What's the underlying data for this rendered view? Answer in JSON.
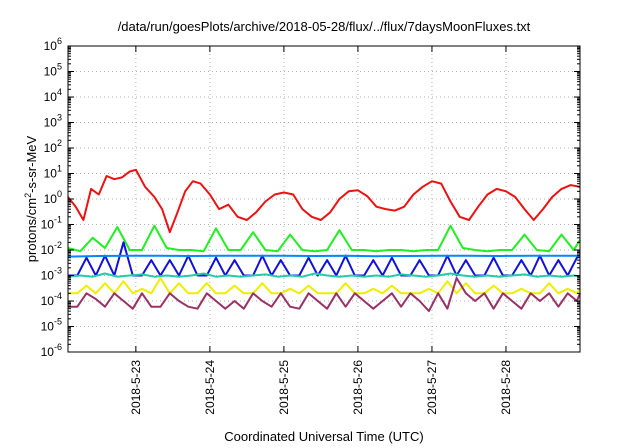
{
  "chart_data": {
    "type": "line",
    "title": "/data/run/goesPlots/archive/2018-05-28/flux/../flux/7daysMoonFluxes.txt",
    "xlabel": "Coordinated Universal Time (UTC)",
    "ylabel_base": "protons/cm",
    "ylabel_sup": "2",
    "ylabel_rest": "-s-sr-MeV",
    "yscale": "log",
    "ylim": [
      1e-06,
      1000000.0
    ],
    "xlim": [
      "2018-05-22 02:00",
      "2018-05-29 00:00"
    ],
    "grid": true,
    "legend": "none",
    "yticks": [
      {
        "base": "10",
        "exp": "-6",
        "value": 1e-06
      },
      {
        "base": "10",
        "exp": "-5",
        "value": 1e-05
      },
      {
        "base": "10",
        "exp": "-4",
        "value": 0.0001
      },
      {
        "base": "10",
        "exp": "-3",
        "value": 0.001
      },
      {
        "base": "10",
        "exp": "-2",
        "value": 0.01
      },
      {
        "base": "10",
        "exp": "-1",
        "value": 0.1
      },
      {
        "base": "10",
        "exp": "0",
        "value": 1
      },
      {
        "base": "10",
        "exp": "1",
        "value": 10
      },
      {
        "base": "10",
        "exp": "2",
        "value": 100
      },
      {
        "base": "10",
        "exp": "3",
        "value": 1000
      },
      {
        "base": "10",
        "exp": "4",
        "value": 10000
      },
      {
        "base": "10",
        "exp": "5",
        "value": 100000
      },
      {
        "base": "10",
        "exp": "6",
        "value": 1000000
      }
    ],
    "xticks": [
      {
        "label": "2018-5-23",
        "value": "2018-05-23 00:00"
      },
      {
        "label": "2018-5-24",
        "value": "2018-05-24 00:00"
      },
      {
        "label": "2018-5-25",
        "value": "2018-05-25 00:00"
      },
      {
        "label": "2018-5-26",
        "value": "2018-05-26 00:00"
      },
      {
        "label": "2018-5-27",
        "value": "2018-05-27 00:00"
      },
      {
        "label": "2018-5-28",
        "value": "2018-05-28 00:00"
      }
    ],
    "series": [
      {
        "color": "#ee1111",
        "x": [
          "2018-05-22 02:00",
          "2018-05-22 04:30",
          "2018-05-22 07:00",
          "2018-05-22 09:30",
          "2018-05-22 12:00",
          "2018-05-22 14:30",
          "2018-05-22 17:00",
          "2018-05-22 19:30",
          "2018-05-22 22:00",
          "2018-05-23 00:00",
          "2018-05-23 03:00",
          "2018-05-23 06:00",
          "2018-05-23 08:30",
          "2018-05-23 11:00",
          "2018-05-23 13:30",
          "2018-05-23 16:00",
          "2018-05-23 18:30",
          "2018-05-23 21:00",
          "2018-05-24 00:00",
          "2018-05-24 03:00",
          "2018-05-24 06:00",
          "2018-05-24 09:00",
          "2018-05-24 12:00",
          "2018-05-24 15:00",
          "2018-05-24 18:00",
          "2018-05-24 21:00",
          "2018-05-25 00:00",
          "2018-05-25 03:00",
          "2018-05-25 06:00",
          "2018-05-25 09:00",
          "2018-05-25 12:00",
          "2018-05-25 15:00",
          "2018-05-25 18:00",
          "2018-05-25 21:00",
          "2018-05-26 00:00",
          "2018-05-26 03:00",
          "2018-05-26 06:00",
          "2018-05-26 09:00",
          "2018-05-26 12:00",
          "2018-05-26 15:00",
          "2018-05-26 18:00",
          "2018-05-26 21:00",
          "2018-05-27 00:00",
          "2018-05-27 03:00",
          "2018-05-27 06:00",
          "2018-05-27 09:00",
          "2018-05-27 12:00",
          "2018-05-27 15:00",
          "2018-05-27 18:00",
          "2018-05-27 21:00",
          "2018-05-28 00:00",
          "2018-05-28 03:00",
          "2018-05-28 06:00",
          "2018-05-28 09:00",
          "2018-05-28 12:00",
          "2018-05-28 15:00",
          "2018-05-28 18:00",
          "2018-05-28 21:00",
          "2018-05-29 00:00"
        ],
        "values": [
          1.2,
          0.5,
          0.15,
          2.5,
          1.5,
          8,
          6,
          7,
          12,
          14,
          3,
          1.2,
          0.4,
          0.05,
          0.3,
          2,
          5,
          4,
          1.5,
          0.4,
          0.6,
          0.2,
          0.15,
          0.3,
          0.8,
          1.5,
          1.8,
          1.5,
          0.4,
          0.2,
          0.15,
          0.3,
          1,
          2,
          2.2,
          1.3,
          0.5,
          0.4,
          0.35,
          0.5,
          1.5,
          3,
          5,
          4,
          0.8,
          0.2,
          0.15,
          0.5,
          1.5,
          2.5,
          2,
          1.2,
          0.4,
          0.15,
          0.4,
          1.2,
          2.5,
          3.5,
          3
        ]
      },
      {
        "color": "#22ee22",
        "x": [
          "2018-05-22 02:00",
          "2018-05-22 06:00",
          "2018-05-22 10:00",
          "2018-05-22 14:00",
          "2018-05-22 18:00",
          "2018-05-22 22:00",
          "2018-05-23 02:00",
          "2018-05-23 06:00",
          "2018-05-23 10:00",
          "2018-05-23 14:00",
          "2018-05-23 18:00",
          "2018-05-23 22:00",
          "2018-05-24 02:00",
          "2018-05-24 06:00",
          "2018-05-24 10:00",
          "2018-05-24 14:00",
          "2018-05-24 18:00",
          "2018-05-24 22:00",
          "2018-05-25 02:00",
          "2018-05-25 06:00",
          "2018-05-25 10:00",
          "2018-05-25 14:00",
          "2018-05-25 18:00",
          "2018-05-25 22:00",
          "2018-05-26 02:00",
          "2018-05-26 06:00",
          "2018-05-26 10:00",
          "2018-05-26 14:00",
          "2018-05-26 18:00",
          "2018-05-26 22:00",
          "2018-05-27 02:00",
          "2018-05-27 06:00",
          "2018-05-27 10:00",
          "2018-05-27 14:00",
          "2018-05-27 18:00",
          "2018-05-27 22:00",
          "2018-05-28 02:00",
          "2018-05-28 06:00",
          "2018-05-28 10:00",
          "2018-05-28 14:00",
          "2018-05-28 18:00",
          "2018-05-28 22:00",
          "2018-05-29 00:00"
        ],
        "values": [
          0.012,
          0.009,
          0.03,
          0.012,
          0.08,
          0.01,
          0.01,
          0.09,
          0.012,
          0.01,
          0.01,
          0.009,
          0.07,
          0.01,
          0.01,
          0.05,
          0.01,
          0.009,
          0.04,
          0.01,
          0.009,
          0.01,
          0.06,
          0.01,
          0.01,
          0.009,
          0.01,
          0.01,
          0.009,
          0.01,
          0.01,
          0.09,
          0.012,
          0.01,
          0.009,
          0.01,
          0.01,
          0.04,
          0.01,
          0.009,
          0.04,
          0.01,
          0.025
        ]
      },
      {
        "color": "#1111dd",
        "x": [
          "2018-05-22 02:00",
          "2018-05-22 05:00",
          "2018-05-22 08:00",
          "2018-05-22 11:00",
          "2018-05-22 14:00",
          "2018-05-22 17:00",
          "2018-05-22 20:00",
          "2018-05-22 23:00",
          "2018-05-23 02:00",
          "2018-05-23 05:00",
          "2018-05-23 08:00",
          "2018-05-23 11:00",
          "2018-05-23 14:00",
          "2018-05-23 17:00",
          "2018-05-23 20:00",
          "2018-05-23 23:00",
          "2018-05-24 02:00",
          "2018-05-24 05:00",
          "2018-05-24 08:00",
          "2018-05-24 11:00",
          "2018-05-24 14:00",
          "2018-05-24 17:00",
          "2018-05-24 20:00",
          "2018-05-24 23:00",
          "2018-05-25 02:00",
          "2018-05-25 05:00",
          "2018-05-25 08:00",
          "2018-05-25 11:00",
          "2018-05-25 14:00",
          "2018-05-25 17:00",
          "2018-05-25 20:00",
          "2018-05-25 23:00",
          "2018-05-26 02:00",
          "2018-05-26 05:00",
          "2018-05-26 08:00",
          "2018-05-26 11:00",
          "2018-05-26 14:00",
          "2018-05-26 17:00",
          "2018-05-26 20:00",
          "2018-05-26 23:00",
          "2018-05-27 02:00",
          "2018-05-27 05:00",
          "2018-05-27 08:00",
          "2018-05-27 11:00",
          "2018-05-27 14:00",
          "2018-05-27 17:00",
          "2018-05-27 20:00",
          "2018-05-27 23:00",
          "2018-05-28 02:00",
          "2018-05-28 05:00",
          "2018-05-28 08:00",
          "2018-05-28 11:00",
          "2018-05-28 14:00",
          "2018-05-28 17:00",
          "2018-05-28 20:00",
          "2018-05-28 23:00",
          "2018-05-29 00:00"
        ],
        "values": [
          0.001,
          0.001,
          0.005,
          0.001,
          0.006,
          0.001,
          0.02,
          0.001,
          0.001,
          0.004,
          0.001,
          0.004,
          0.001,
          0.006,
          0.001,
          0.001,
          0.005,
          0.001,
          0.004,
          0.001,
          0.001,
          0.006,
          0.001,
          0.004,
          0.001,
          0.001,
          0.005,
          0.001,
          0.004,
          0.001,
          0.006,
          0.001,
          0.001,
          0.004,
          0.001,
          0.005,
          0.001,
          0.001,
          0.004,
          0.001,
          0.001,
          0.006,
          0.001,
          0.004,
          0.001,
          0.001,
          0.005,
          0.001,
          0.001,
          0.004,
          0.001,
          0.006,
          0.001,
          0.004,
          0.001,
          0.005,
          0.006
        ]
      },
      {
        "color": "#0088ff",
        "x": [
          "2018-05-22 02:00",
          "2018-05-22 12:00",
          "2018-05-22 22:00",
          "2018-05-23 08:00",
          "2018-05-23 18:00",
          "2018-05-24 04:00",
          "2018-05-24 14:00",
          "2018-05-25 00:00",
          "2018-05-25 10:00",
          "2018-05-25 20:00",
          "2018-05-26 06:00",
          "2018-05-26 16:00",
          "2018-05-27 02:00",
          "2018-05-27 12:00",
          "2018-05-27 22:00",
          "2018-05-28 08:00",
          "2018-05-28 18:00",
          "2018-05-29 00:00"
        ],
        "values": [
          0.0055,
          0.0058,
          0.006,
          0.0059,
          0.0058,
          0.006,
          0.0059,
          0.006,
          0.0058,
          0.006,
          0.0057,
          0.0058,
          0.006,
          0.0059,
          0.0058,
          0.006,
          0.0059,
          0.006
        ]
      },
      {
        "color": "#22ccaa",
        "x": [
          "2018-05-22 02:00",
          "2018-05-22 06:00",
          "2018-05-22 10:00",
          "2018-05-22 14:00",
          "2018-05-22 18:00",
          "2018-05-22 22:00",
          "2018-05-23 02:00",
          "2018-05-23 06:00",
          "2018-05-23 10:00",
          "2018-05-23 14:00",
          "2018-05-23 18:00",
          "2018-05-23 22:00",
          "2018-05-24 02:00",
          "2018-05-24 06:00",
          "2018-05-24 10:00",
          "2018-05-24 14:00",
          "2018-05-24 18:00",
          "2018-05-24 22:00",
          "2018-05-25 02:00",
          "2018-05-25 06:00",
          "2018-05-25 10:00",
          "2018-05-25 14:00",
          "2018-05-25 18:00",
          "2018-05-25 22:00",
          "2018-05-26 02:00",
          "2018-05-26 06:00",
          "2018-05-26 10:00",
          "2018-05-26 14:00",
          "2018-05-26 18:00",
          "2018-05-26 22:00",
          "2018-05-27 02:00",
          "2018-05-27 06:00",
          "2018-05-27 10:00",
          "2018-05-27 14:00",
          "2018-05-27 18:00",
          "2018-05-27 22:00",
          "2018-05-28 02:00",
          "2018-05-28 06:00",
          "2018-05-28 10:00",
          "2018-05-28 14:00",
          "2018-05-28 18:00",
          "2018-05-28 22:00",
          "2018-05-29 00:00"
        ],
        "values": [
          0.0009,
          0.001,
          0.0009,
          0.0012,
          0.0009,
          0.001,
          0.0011,
          0.0009,
          0.001,
          0.0009,
          0.001,
          0.0012,
          0.0009,
          0.001,
          0.0009,
          0.001,
          0.0011,
          0.0009,
          0.001,
          0.0009,
          0.0012,
          0.001,
          0.0009,
          0.001,
          0.0009,
          0.001,
          0.0009,
          0.0011,
          0.001,
          0.0009,
          0.001,
          0.0012,
          0.001,
          0.0009,
          0.001,
          0.0009,
          0.001,
          0.0011,
          0.0009,
          0.001,
          0.0009,
          0.001,
          0.0009
        ]
      },
      {
        "color": "#eeee00",
        "x": [
          "2018-05-22 02:00",
          "2018-05-22 05:00",
          "2018-05-22 08:00",
          "2018-05-22 11:00",
          "2018-05-22 14:00",
          "2018-05-22 17:00",
          "2018-05-22 20:00",
          "2018-05-22 23:00",
          "2018-05-23 02:00",
          "2018-05-23 05:00",
          "2018-05-23 08:00",
          "2018-05-23 11:00",
          "2018-05-23 14:00",
          "2018-05-23 17:00",
          "2018-05-23 20:00",
          "2018-05-23 23:00",
          "2018-05-24 02:00",
          "2018-05-24 05:00",
          "2018-05-24 08:00",
          "2018-05-24 11:00",
          "2018-05-24 14:00",
          "2018-05-24 17:00",
          "2018-05-24 20:00",
          "2018-05-24 23:00",
          "2018-05-25 02:00",
          "2018-05-25 05:00",
          "2018-05-25 08:00",
          "2018-05-25 11:00",
          "2018-05-25 14:00",
          "2018-05-25 17:00",
          "2018-05-25 20:00",
          "2018-05-25 23:00",
          "2018-05-26 02:00",
          "2018-05-26 05:00",
          "2018-05-26 08:00",
          "2018-05-26 11:00",
          "2018-05-26 14:00",
          "2018-05-26 17:00",
          "2018-05-26 20:00",
          "2018-05-26 23:00",
          "2018-05-27 02:00",
          "2018-05-27 05:00",
          "2018-05-27 08:00",
          "2018-05-27 11:00",
          "2018-05-27 14:00",
          "2018-05-27 17:00",
          "2018-05-27 20:00",
          "2018-05-27 23:00",
          "2018-05-28 02:00",
          "2018-05-28 05:00",
          "2018-05-28 08:00",
          "2018-05-28 11:00",
          "2018-05-28 14:00",
          "2018-05-28 17:00",
          "2018-05-28 20:00",
          "2018-05-28 23:00",
          "2018-05-29 00:00"
        ],
        "values": [
          0.0002,
          0.0002,
          0.0004,
          0.0002,
          0.0005,
          0.0002,
          0.0006,
          0.0002,
          0.0003,
          0.0002,
          0.0008,
          0.0002,
          0.0005,
          0.0002,
          0.0002,
          0.0005,
          0.0002,
          0.0002,
          0.0004,
          0.0002,
          0.0002,
          0.0005,
          0.0002,
          0.0002,
          0.0003,
          0.0002,
          0.0004,
          0.0002,
          0.0002,
          0.0002,
          0.0005,
          0.0002,
          0.0002,
          0.0003,
          0.0002,
          0.0004,
          0.0002,
          0.0002,
          0.0002,
          0.0003,
          0.0002,
          0.0006,
          0.0002,
          0.0005,
          0.0002,
          0.0002,
          0.0004,
          0.0002,
          0.0002,
          0.0003,
          0.0002,
          0.0002,
          0.0005,
          0.0002,
          0.0003,
          0.0002,
          0.0003
        ]
      },
      {
        "color": "#993366",
        "x": [
          "2018-05-22 02:00",
          "2018-05-22 05:00",
          "2018-05-22 08:00",
          "2018-05-22 11:00",
          "2018-05-22 14:00",
          "2018-05-22 17:00",
          "2018-05-22 20:00",
          "2018-05-22 23:00",
          "2018-05-23 02:00",
          "2018-05-23 05:00",
          "2018-05-23 08:00",
          "2018-05-23 11:00",
          "2018-05-23 14:00",
          "2018-05-23 17:00",
          "2018-05-23 20:00",
          "2018-05-23 23:00",
          "2018-05-24 02:00",
          "2018-05-24 05:00",
          "2018-05-24 08:00",
          "2018-05-24 11:00",
          "2018-05-24 14:00",
          "2018-05-24 17:00",
          "2018-05-24 20:00",
          "2018-05-24 23:00",
          "2018-05-25 02:00",
          "2018-05-25 05:00",
          "2018-05-25 08:00",
          "2018-05-25 11:00",
          "2018-05-25 14:00",
          "2018-05-25 17:00",
          "2018-05-25 20:00",
          "2018-05-25 23:00",
          "2018-05-26 02:00",
          "2018-05-26 05:00",
          "2018-05-26 08:00",
          "2018-05-26 11:00",
          "2018-05-26 14:00",
          "2018-05-26 17:00",
          "2018-05-26 20:00",
          "2018-05-26 23:00",
          "2018-05-27 02:00",
          "2018-05-27 05:00",
          "2018-05-27 08:00",
          "2018-05-27 11:00",
          "2018-05-27 14:00",
          "2018-05-27 17:00",
          "2018-05-27 20:00",
          "2018-05-27 23:00",
          "2018-05-28 02:00",
          "2018-05-28 05:00",
          "2018-05-28 08:00",
          "2018-05-28 11:00",
          "2018-05-28 14:00",
          "2018-05-28 17:00",
          "2018-05-28 20:00",
          "2018-05-28 23:00",
          "2018-05-29 00:00"
        ],
        "values": [
          6e-05,
          6e-05,
          0.0002,
          0.00012,
          6e-05,
          0.0002,
          0.0001,
          5e-05,
          0.0002,
          6e-05,
          6e-05,
          0.0002,
          0.0001,
          6e-05,
          5e-05,
          0.0002,
          0.0001,
          5e-05,
          0.0001,
          5e-05,
          0.0002,
          0.0001,
          6e-05,
          0.0002,
          6e-05,
          5e-05,
          0.0002,
          0.0001,
          5e-05,
          0.0002,
          6e-05,
          0.0002,
          0.0001,
          5e-05,
          0.0001,
          0.0002,
          6e-05,
          0.0002,
          0.0001,
          4e-05,
          0.0002,
          5e-05,
          0.0008,
          0.0002,
          0.0001,
          0.0002,
          5e-05,
          0.0002,
          0.0001,
          5e-05,
          0.0002,
          0.0001,
          0.0002,
          6e-05,
          0.0002,
          0.0001,
          0.0002
        ]
      }
    ]
  }
}
